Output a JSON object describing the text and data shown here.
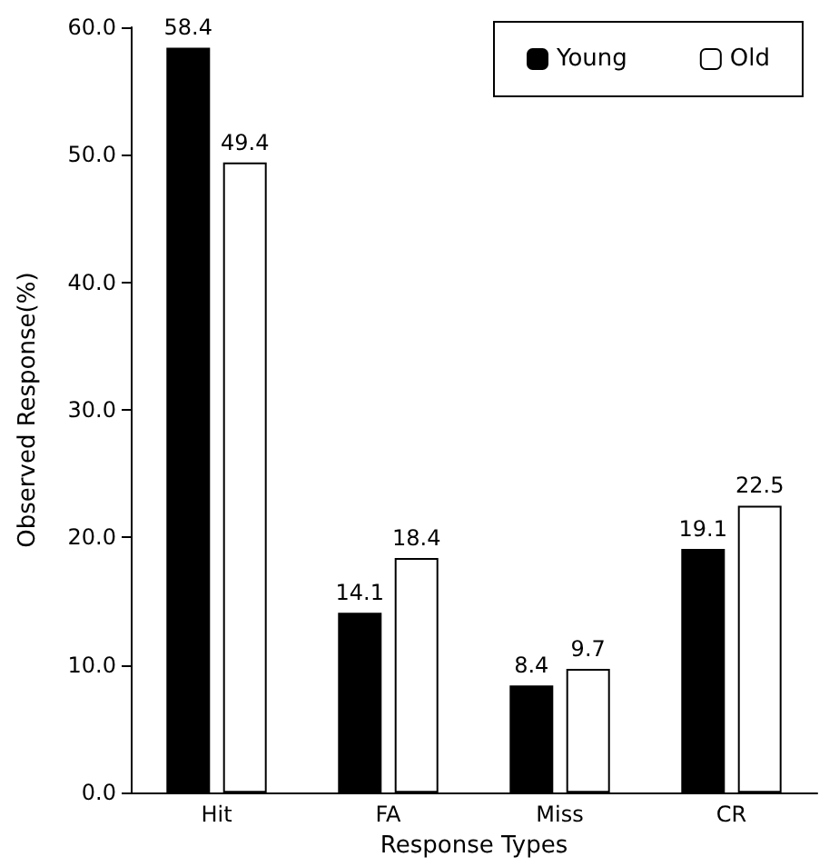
{
  "chart_data": {
    "type": "bar",
    "xlabel": "Response Types",
    "ylabel": "Observed Response(%)",
    "categories": [
      "Hit",
      "FA",
      "Miss",
      "CR"
    ],
    "series": [
      {
        "name": "Young",
        "color": "#000000",
        "values": [
          58.4,
          14.1,
          8.4,
          19.1
        ]
      },
      {
        "name": "Old",
        "color": "#ffffff",
        "values": [
          49.4,
          18.4,
          9.7,
          22.5
        ]
      }
    ],
    "ylim": [
      0,
      60
    ],
    "yticks": [
      {
        "value": 0,
        "label": "0.0"
      },
      {
        "value": 10,
        "label": "10.0"
      },
      {
        "value": 20,
        "label": "20.0"
      },
      {
        "value": 30,
        "label": "30.0"
      },
      {
        "value": 40,
        "label": "40.0"
      },
      {
        "value": 50,
        "label": "50.0"
      },
      {
        "value": 60,
        "label": "60.0"
      }
    ],
    "data_labels": true,
    "grid": false,
    "legend": "top right"
  }
}
